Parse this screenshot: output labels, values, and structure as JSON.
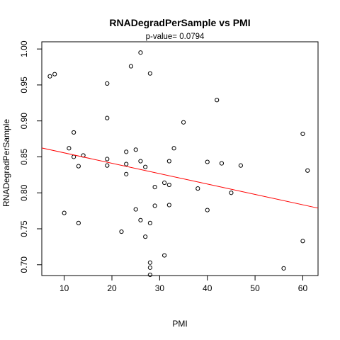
{
  "chart_data": {
    "type": "scatter",
    "title": "RNADegradPerSample  vs  PMI",
    "subtitle": "p-value= 0.0794",
    "xlabel": "PMI",
    "ylabel": "RNADegradPerSample",
    "xlim": [
      5.3,
      63.2
    ],
    "ylim": [
      0.685,
      1.01
    ],
    "xticks": [
      10,
      20,
      30,
      40,
      50,
      60
    ],
    "yticks": [
      0.7,
      0.75,
      0.8,
      0.85,
      0.9,
      0.95,
      1.0
    ],
    "ytick_labels": [
      "0.70",
      "0.75",
      "0.80",
      "0.85",
      "0.90",
      "0.95",
      "1.00"
    ],
    "grid": false,
    "points": [
      {
        "x": 7,
        "y": 0.962
      },
      {
        "x": 8,
        "y": 0.965
      },
      {
        "x": 10,
        "y": 0.772
      },
      {
        "x": 11,
        "y": 0.862
      },
      {
        "x": 12,
        "y": 0.884
      },
      {
        "x": 12,
        "y": 0.85
      },
      {
        "x": 13,
        "y": 0.837
      },
      {
        "x": 13,
        "y": 0.758
      },
      {
        "x": 14,
        "y": 0.852
      },
      {
        "x": 19,
        "y": 0.952
      },
      {
        "x": 19,
        "y": 0.904
      },
      {
        "x": 19,
        "y": 0.847
      },
      {
        "x": 19,
        "y": 0.838
      },
      {
        "x": 22,
        "y": 0.746
      },
      {
        "x": 23,
        "y": 0.857
      },
      {
        "x": 23,
        "y": 0.84
      },
      {
        "x": 23,
        "y": 0.826
      },
      {
        "x": 24,
        "y": 0.976
      },
      {
        "x": 25,
        "y": 0.86
      },
      {
        "x": 25,
        "y": 0.777
      },
      {
        "x": 26,
        "y": 0.995
      },
      {
        "x": 26,
        "y": 0.844
      },
      {
        "x": 26,
        "y": 0.762
      },
      {
        "x": 27,
        "y": 0.836
      },
      {
        "x": 27,
        "y": 0.739
      },
      {
        "x": 28,
        "y": 0.966
      },
      {
        "x": 28,
        "y": 0.758
      },
      {
        "x": 28,
        "y": 0.703
      },
      {
        "x": 28,
        "y": 0.696
      },
      {
        "x": 28,
        "y": 0.686
      },
      {
        "x": 29,
        "y": 0.808
      },
      {
        "x": 29,
        "y": 0.782
      },
      {
        "x": 31,
        "y": 0.814
      },
      {
        "x": 31,
        "y": 0.713
      },
      {
        "x": 32,
        "y": 0.844
      },
      {
        "x": 32,
        "y": 0.811
      },
      {
        "x": 32,
        "y": 0.783
      },
      {
        "x": 33,
        "y": 0.862
      },
      {
        "x": 35,
        "y": 0.898
      },
      {
        "x": 38,
        "y": 0.806
      },
      {
        "x": 40,
        "y": 0.843
      },
      {
        "x": 40,
        "y": 0.776
      },
      {
        "x": 42,
        "y": 0.929
      },
      {
        "x": 43,
        "y": 0.841
      },
      {
        "x": 45,
        "y": 0.8
      },
      {
        "x": 47,
        "y": 0.838
      },
      {
        "x": 56,
        "y": 0.695
      },
      {
        "x": 60,
        "y": 0.882
      },
      {
        "x": 60,
        "y": 0.733
      },
      {
        "x": 61,
        "y": 0.831
      }
    ],
    "fit_line": {
      "intercept": 0.87,
      "slope": -0.001444,
      "color": "#ff0000"
    },
    "point_color": "#000000"
  }
}
